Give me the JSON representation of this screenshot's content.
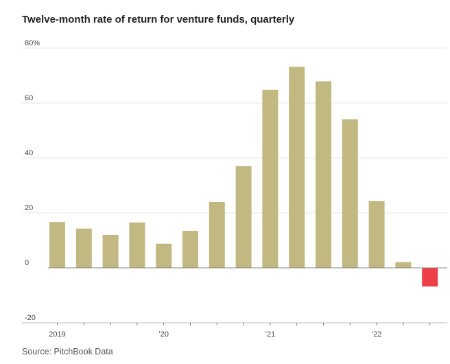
{
  "title": "Twelve-month rate of return for venture funds, quarterly",
  "source": "Source: PitchBook Data",
  "colors": {
    "positive": "#c2b982",
    "negative": "#ee3e47",
    "grid": "#e4e4e4",
    "zero_line": "#888888",
    "axis": "#bdbdbd"
  },
  "chart_data": {
    "type": "bar",
    "categories": [
      "2019 Q1",
      "2019 Q2",
      "2019 Q3",
      "2019 Q4",
      "2020 Q1",
      "2020 Q2",
      "2020 Q3",
      "2020 Q4",
      "2021 Q1",
      "2021 Q2",
      "2021 Q3",
      "2021 Q4",
      "2022 Q1",
      "2022 Q2",
      "2022 Q3"
    ],
    "values": [
      16.7,
      14.3,
      12.0,
      16.5,
      8.8,
      13.5,
      24.0,
      37.0,
      64.8,
      73.2,
      67.9,
      54.1,
      24.3,
      2.1,
      -6.8
    ],
    "ylim": [
      -20,
      80
    ],
    "yticks": [
      -20,
      0,
      20,
      40,
      60,
      80
    ],
    "ytick_labels": [
      "-20",
      "0",
      "20",
      "40",
      "60",
      "80%"
    ],
    "xtick_labels": [
      {
        "text": "2019",
        "index": 0
      },
      {
        "text": "’20",
        "index": 4
      },
      {
        "text": "’21",
        "index": 8
      },
      {
        "text": "’22",
        "index": 12
      }
    ],
    "grid": true,
    "title": "Twelve-month rate of return for venture funds, quarterly",
    "xlabel": "",
    "ylabel": ""
  }
}
